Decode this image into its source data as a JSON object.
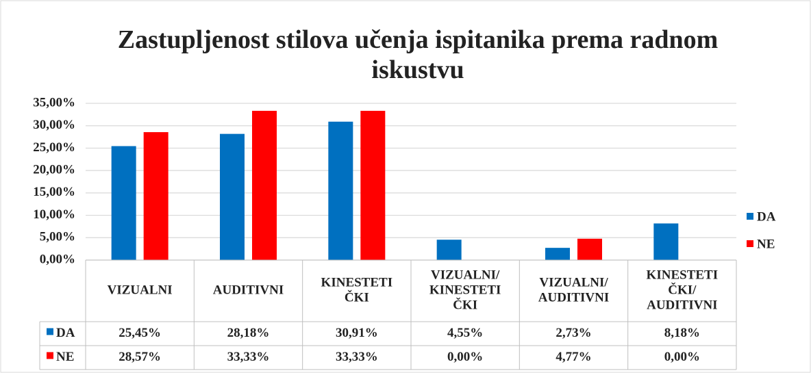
{
  "chart_data": {
    "type": "bar",
    "title": "Zastupljenost stilova učenja ispitanika prema radnom iskustvu",
    "categories": [
      [
        "VIZUALNI"
      ],
      [
        "AUDITIVNI"
      ],
      [
        "KINESTETI",
        "ČKI"
      ],
      [
        "VIZUALNI/",
        "KINESTETI",
        "ČKI"
      ],
      [
        "VIZUALNI/",
        "AUDITIVNI"
      ],
      [
        "KINESTETI",
        "ČKI/",
        "AUDITIVNI"
      ]
    ],
    "series": [
      {
        "name": "DA",
        "color": "#0070c0",
        "values": [
          25.45,
          28.18,
          30.91,
          4.55,
          2.73,
          8.18
        ],
        "value_labels": [
          "25,45%",
          "28,18%",
          "30,91%",
          "4,55%",
          "2,73%",
          "8,18%"
        ]
      },
      {
        "name": "NE",
        "color": "#ff0000",
        "values": [
          28.57,
          33.33,
          33.33,
          0,
          4.77,
          0
        ],
        "value_labels": [
          "28,57%",
          "33,33%",
          "33,33%",
          "0,00%",
          "4,77%",
          "0,00%"
        ]
      }
    ],
    "ylim": [
      0,
      35
    ],
    "yticks": [
      {
        "value": 0,
        "label": "0,00%"
      },
      {
        "value": 5,
        "label": "5,00%"
      },
      {
        "value": 10,
        "label": "10,00%"
      },
      {
        "value": 15,
        "label": "15,00%"
      },
      {
        "value": 20,
        "label": "20,00%"
      },
      {
        "value": 25,
        "label": "25,00%"
      },
      {
        "value": 30,
        "label": "30,00%"
      },
      {
        "value": 35,
        "label": "35,00%"
      }
    ],
    "grid": true,
    "legend": "right",
    "data_table": true
  }
}
